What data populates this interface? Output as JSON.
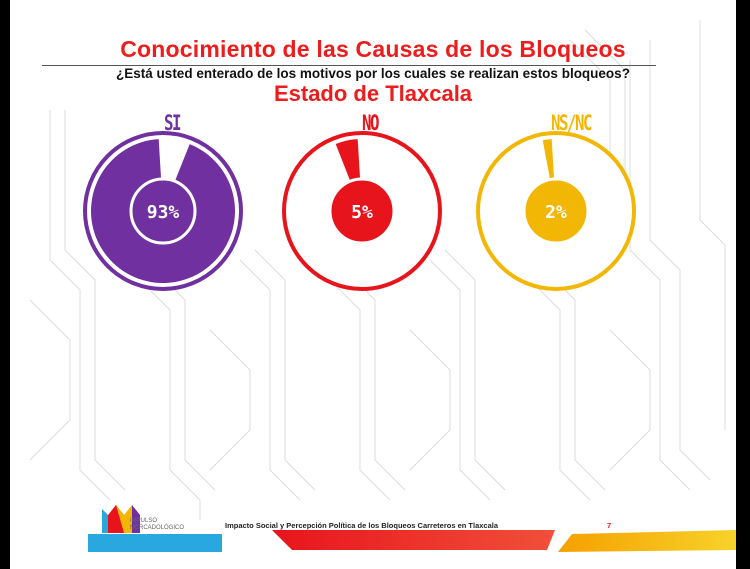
{
  "slide": {
    "title": "Conocimiento de las Causas de los Bloqueos",
    "question": "¿Está usted enterado de los motivos por los cuales se realizan estos bloqueos?",
    "subtitle": "Estado de Tlaxcala",
    "footer_caption": "Impacto Social y Percepción Política de los Bloqueos Carreteros en Tlaxcala",
    "page_number": "7",
    "logo_text_line1": "IMPULSO",
    "logo_text_line2": "MERCADOLÓGICO"
  },
  "chart_data": {
    "type": "pie",
    "title": "Conocimiento de las Causas de los Bloqueos",
    "categories": [
      "SI",
      "NO",
      "NS/NC"
    ],
    "values": [
      93,
      5,
      2
    ],
    "value_labels": [
      "93%",
      "5%",
      "2%"
    ],
    "colors": [
      "#7030a0",
      "#e8141c",
      "#f2b705"
    ]
  }
}
